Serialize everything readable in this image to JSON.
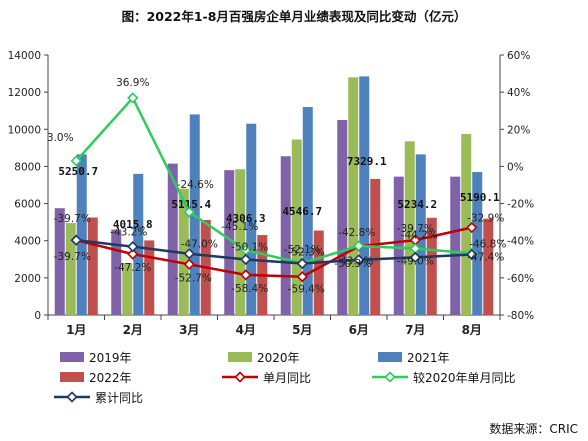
{
  "source": "数据来源：CRIC",
  "chart_data": {
    "type": "bar",
    "title": "图：2022年1-8月百强房企单月业绩表现及同比变动（亿元）",
    "categories": [
      "1月",
      "2月",
      "3月",
      "4月",
      "5月",
      "6月",
      "7月",
      "8月"
    ],
    "y_left": {
      "min": 0,
      "max": 14000,
      "step": 2000,
      "ticks": [
        "0",
        "2000",
        "4000",
        "6000",
        "8000",
        "10000",
        "12000",
        "14000"
      ]
    },
    "y_right": {
      "min": -80,
      "max": 60,
      "step": 20,
      "ticks": [
        "-80%",
        "-60%",
        "-40%",
        "-20%",
        "0%",
        "20%",
        "40%",
        "60%"
      ]
    },
    "grid": false,
    "legend_position": "bottom",
    "bar_series": [
      {
        "name": "2019年",
        "color": "#7f62a8",
        "values": [
          5750,
          4600,
          8150,
          7800,
          8550,
          10500,
          7450,
          7450
        ]
      },
      {
        "name": "2020年",
        "color": "#9bbb59",
        "values": [
          4950,
          2800,
          6800,
          7850,
          9450,
          12800,
          9350,
          9750
        ]
      },
      {
        "name": "2021年",
        "color": "#4f81bd",
        "values": [
          8650,
          7600,
          10800,
          10300,
          11200,
          12850,
          8650,
          7700
        ]
      },
      {
        "name": "2022年",
        "color": "#c0504d",
        "values": [
          5250.7,
          4015.8,
          5115.4,
          4306.3,
          4546.7,
          7329.1,
          5234.2,
          5190.1
        ],
        "labels": [
          "5250.7",
          "4015.8",
          "5115.4",
          "4306.3",
          "4546.7",
          "7329.1",
          "5234.2",
          "5190.1"
        ]
      }
    ],
    "line_series": [
      {
        "name": "单月同比",
        "color": "#c00000",
        "values": [
          -39.7,
          -47.2,
          -52.7,
          -58.4,
          -59.4,
          -43.0,
          -39.7,
          -32.9
        ],
        "labels": [
          "-39.7%",
          "-47.2%",
          "-52.7%",
          "-58.4%",
          "-59.4%",
          "-43.0%",
          "-39.7%",
          "-32.9%"
        ]
      },
      {
        "name": "较2020年单月同比",
        "color": "#2ecc5f",
        "values": [
          3.0,
          36.9,
          -24.6,
          -45.1,
          -52.1,
          -42.8,
          -44.2,
          -46.8
        ],
        "labels": [
          "3.0%",
          "36.9%",
          "-24.6%",
          "-45.1%",
          "-52.1%",
          "-42.8%",
          "-44.2%",
          "-46.8%"
        ]
      },
      {
        "name": "累计同比",
        "color": "#1f3864",
        "values": [
          -39.7,
          -43.2,
          -47.0,
          -50.1,
          -52.3,
          -50.3,
          -49.0,
          -47.4
        ],
        "labels": [
          "-39.7%",
          "-43.2%",
          "-47.0%",
          "-50.1%",
          "-52.3%",
          "-50.3%",
          "-49.0%",
          "-47.4%"
        ]
      }
    ],
    "legend": [
      "2019年",
      "2020年",
      "2021年",
      "2022年",
      "单月同比",
      "较2020年单月同比",
      "累计同比"
    ]
  }
}
